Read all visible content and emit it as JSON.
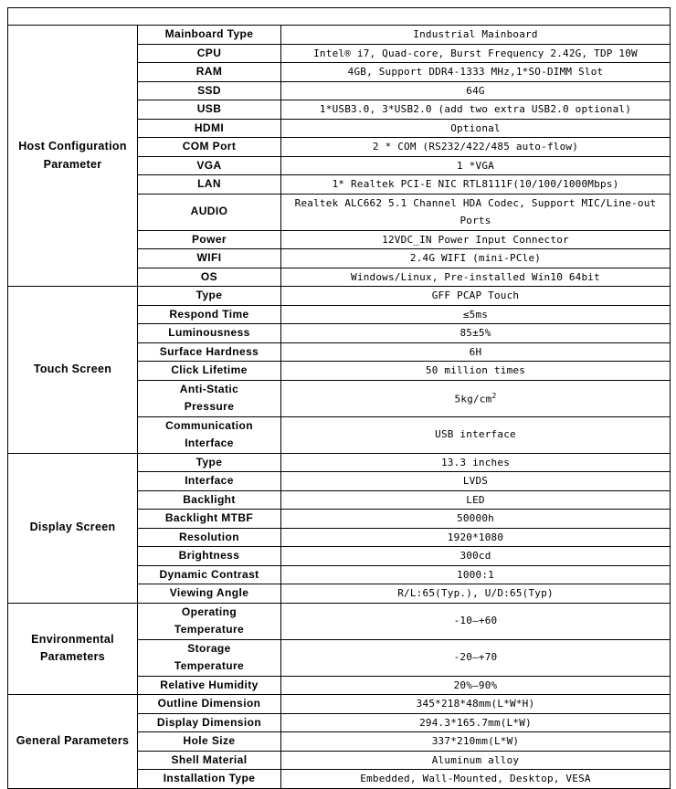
{
  "header": {
    "title": ""
  },
  "groups": [
    {
      "name": "Host Configuration\nParameter",
      "rows": [
        {
          "label": "Mainboard Type",
          "value": "Industrial Mainboard"
        },
        {
          "label": "CPU",
          "value": "Intel® i7, Quad-core, Burst Frequency 2.42G, TDP 10W"
        },
        {
          "label": "RAM",
          "value": "4GB, Support DDR4-1333 MHz,1*SO-DIMM Slot"
        },
        {
          "label": "SSD",
          "value": "64G"
        },
        {
          "label": "USB",
          "value": "1*USB3.0, 3*USB2.0 (add two extra USB2.0 optional)"
        },
        {
          "label": "HDMI",
          "value": "Optional"
        },
        {
          "label": "COM Port",
          "value": "2 * COM (RS232/422/485 auto-flow)"
        },
        {
          "label": "VGA",
          "value": "1 *VGA"
        },
        {
          "label": "LAN",
          "value": "1* Realtek PCI-E NIC RTL8111F(10/100/1000Mbps)"
        },
        {
          "label": "AUDIO",
          "value": "Realtek ALC662 5.1 Channel HDA Codec, Support MIC/Line-out\nPorts"
        },
        {
          "label": "Power",
          "value": "12VDC_IN Power Input Connector"
        },
        {
          "label": "WIFI",
          "value": "2.4G WIFI (mini-PCle)"
        },
        {
          "label": "OS",
          "value": "Windows/Linux,  Pre-installed Win10 64bit"
        }
      ]
    },
    {
      "name": "Touch Screen",
      "rows": [
        {
          "label": "Type",
          "value": "GFF PCAP Touch"
        },
        {
          "label": "Respond Time",
          "value": "≤5ms"
        },
        {
          "label": "Luminousness",
          "value": "85±5%"
        },
        {
          "label": "Surface Hardness",
          "value": "6H"
        },
        {
          "label": "Click Lifetime",
          "value": "50 million times"
        },
        {
          "label": "Anti-Static\nPressure",
          "value": "5kg/cm",
          "sup": "2"
        },
        {
          "label": "Communication\nInterface",
          "value": "USB interface"
        }
      ]
    },
    {
      "name": "Display Screen",
      "rows": [
        {
          "label": "Type",
          "value": "13.3 inches"
        },
        {
          "label": "Interface",
          "value": "LVDS"
        },
        {
          "label": "Backlight",
          "value": "LED"
        },
        {
          "label": "Backlight MTBF",
          "value": "50000h"
        },
        {
          "label": "Resolution",
          "value": "1920*1080"
        },
        {
          "label": "Brightness",
          "value": "300cd"
        },
        {
          "label": "Dynamic Contrast",
          "value": "1000:1"
        },
        {
          "label": "Viewing Angle",
          "value": "R/L:65(Typ.), U/D:65(Typ)"
        }
      ]
    },
    {
      "name": "Environmental\nParameters",
      "rows": [
        {
          "label": "Operating\nTemperature",
          "value": "-10—+60"
        },
        {
          "label": "Storage\nTemperature",
          "value": "-20—+70"
        },
        {
          "label": "Relative Humidity",
          "value": "20%—90%"
        }
      ]
    },
    {
      "name": "General Parameters",
      "rows": [
        {
          "label": "Outline Dimension",
          "value": "345*218*48mm(L*W*H)"
        },
        {
          "label": "Display Dimension",
          "value": "294.3*165.7mm(L*W)"
        },
        {
          "label": "Hole Size",
          "value": "337*210mm(L*W)"
        },
        {
          "label": "Shell Material",
          "value": "Aluminum alloy"
        },
        {
          "label": "Installation Type",
          "value": "Embedded, Wall-Mounted, Desktop, VESA"
        }
      ]
    }
  ]
}
